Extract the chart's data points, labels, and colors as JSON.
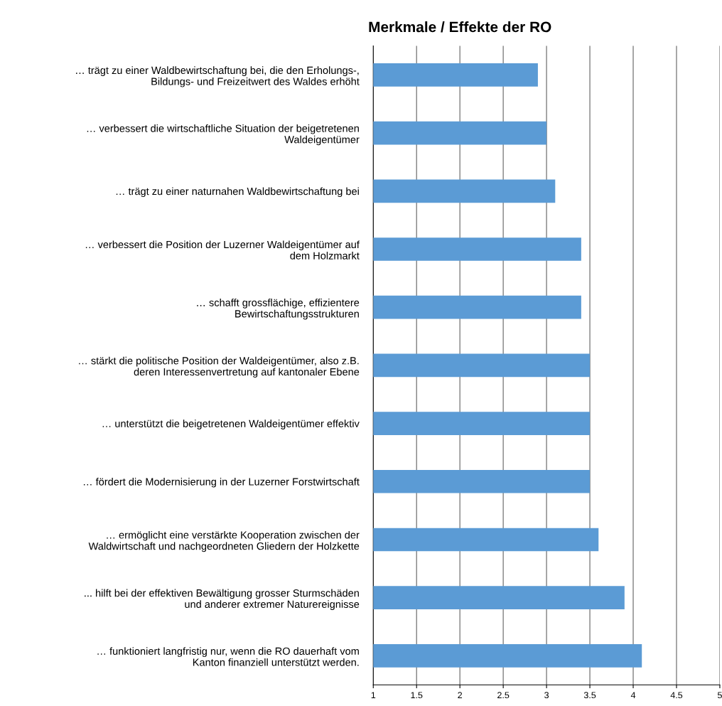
{
  "chart_data": {
    "type": "bar",
    "orientation": "horizontal",
    "title": "Merkmale / Effekte der RO",
    "categories": [
      "… trägt zu einer Waldbewirtschaftung bei, die den Erholungs-,\nBildungs- und Freizeitwert des Waldes erhöht",
      "… verbessert die wirtschaftliche Situation der beigetretenen\nWaldeigentümer",
      "… trägt zu einer naturnahen Waldbewirtschaftung bei",
      "… verbessert die Position der Luzerner Waldeigentümer auf\ndem Holzmarkt",
      "… schafft grossflächige, effizientere\nBewirtschaftungsstrukturen",
      "… stärkt die politische Position der Waldeigentümer, also z.B.\nderen Interessenvertretung auf kantonaler Ebene",
      "… unterstützt die beigetretenen Waldeigentümer effektiv",
      "… fördert die Modernisierung in der Luzerner Forstwirtschaft",
      "… ermöglicht eine verstärkte Kooperation zwischen der\nWaldwirtschaft und nachgeordneten Gliedern der Holzkette",
      "... hilft bei der effektiven Bewältigung grosser Sturmschäden\nund anderer extremer Naturereignisse",
      "… funktioniert langfristig nur, wenn die RO dauerhaft vom\nKanton finanziell unterstützt werden."
    ],
    "values": [
      2.9,
      3.0,
      3.1,
      3.4,
      3.4,
      3.5,
      3.5,
      3.5,
      3.6,
      3.9,
      4.1
    ],
    "color": "#5b9bd5",
    "xlim": [
      1,
      5
    ],
    "xticks": [
      1,
      1.5,
      2,
      2.5,
      3,
      3.5,
      4,
      4.5,
      5
    ],
    "grid": "x"
  }
}
